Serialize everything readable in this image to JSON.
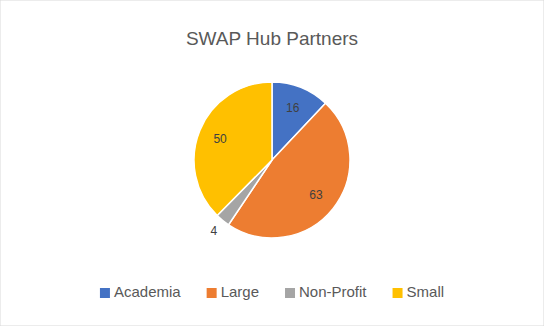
{
  "chart_data": {
    "type": "pie",
    "title": "SWAP Hub Partners",
    "categories": [
      "Academia",
      "Large",
      "Non-Profit",
      "Small"
    ],
    "values": [
      16,
      63,
      4,
      50
    ],
    "colors": [
      "#4472c4",
      "#ed7d31",
      "#a5a5a5",
      "#ffc000"
    ],
    "data_labels": true,
    "legend": "bottom"
  }
}
